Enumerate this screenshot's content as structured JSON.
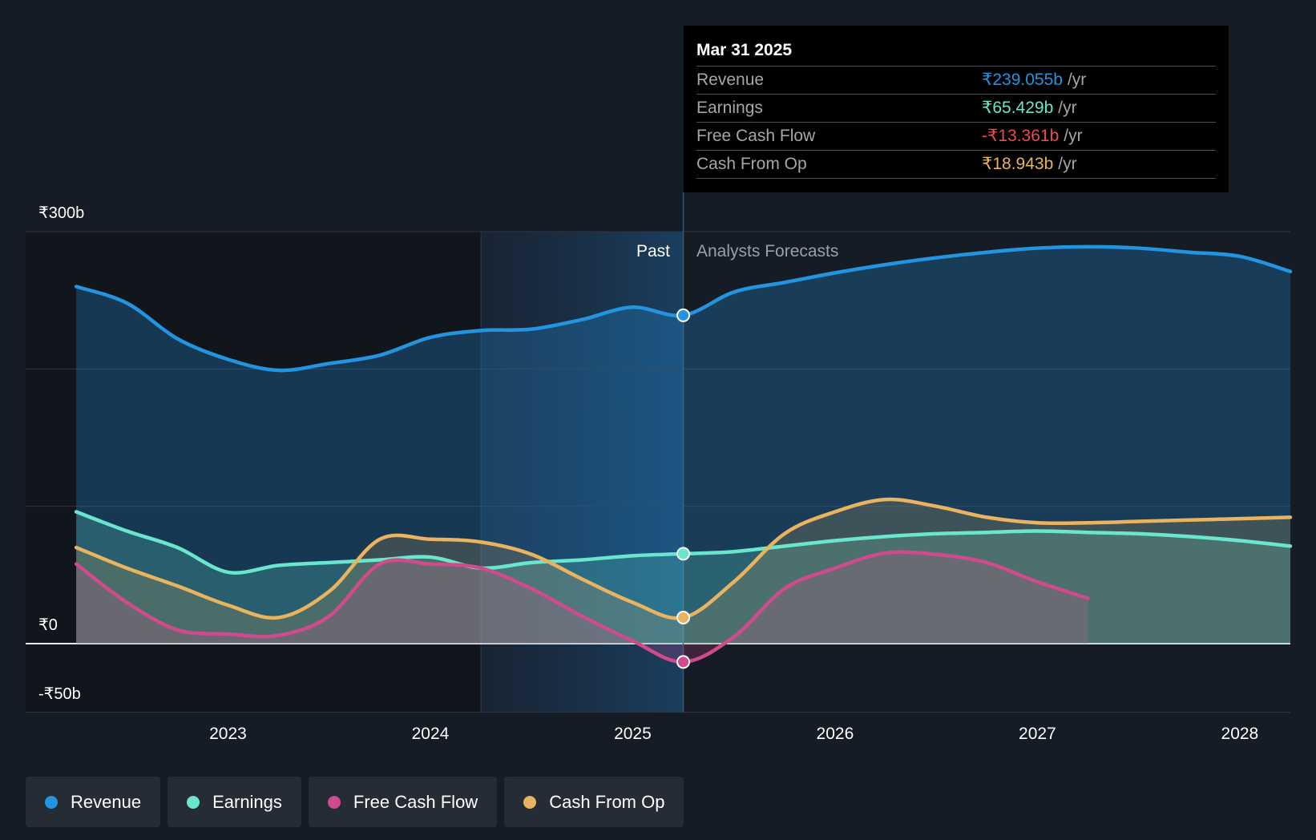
{
  "chart_data": {
    "type": "area",
    "currency_symbol": "₹",
    "y_axis": {
      "min": -50,
      "max": 300,
      "unit": "b",
      "tick_labels": [
        "₹300b",
        "₹0",
        "-₹50b"
      ],
      "gridlines": [
        300,
        200,
        100,
        0,
        -50
      ]
    },
    "x_axis": {
      "tick_labels": [
        "2023",
        "2024",
        "2025",
        "2026",
        "2027",
        "2028"
      ],
      "ticks": [
        2023,
        2024,
        2025,
        2026,
        2027,
        2028
      ],
      "range": [
        2022.0,
        2028.25
      ]
    },
    "past_label": "Past",
    "forecast_label": "Analysts Forecasts",
    "divider_x": 2025.25,
    "highlight_start_x": 2024.25,
    "series": [
      {
        "name": "Revenue",
        "color": "#2394df",
        "fill": true,
        "points": [
          [
            2022.25,
            260
          ],
          [
            2022.5,
            248
          ],
          [
            2022.75,
            222
          ],
          [
            2023.0,
            207
          ],
          [
            2023.25,
            199
          ],
          [
            2023.5,
            204
          ],
          [
            2023.75,
            210
          ],
          [
            2024.0,
            223
          ],
          [
            2024.25,
            228
          ],
          [
            2024.5,
            229
          ],
          [
            2024.75,
            236
          ],
          [
            2025.0,
            245
          ],
          [
            2025.25,
            239.055
          ],
          [
            2025.5,
            256
          ],
          [
            2025.75,
            263
          ],
          [
            2026.0,
            270
          ],
          [
            2026.25,
            276
          ],
          [
            2026.5,
            281
          ],
          [
            2026.75,
            285
          ],
          [
            2027.0,
            288
          ],
          [
            2027.25,
            289
          ],
          [
            2027.5,
            288
          ],
          [
            2027.75,
            285
          ],
          [
            2028.0,
            282
          ],
          [
            2028.25,
            271
          ]
        ]
      },
      {
        "name": "Earnings",
        "color": "#6ae6cf",
        "fill": true,
        "points": [
          [
            2022.25,
            96
          ],
          [
            2022.5,
            82
          ],
          [
            2022.75,
            70
          ],
          [
            2023.0,
            52
          ],
          [
            2023.25,
            57
          ],
          [
            2023.5,
            59
          ],
          [
            2023.75,
            61
          ],
          [
            2024.0,
            63
          ],
          [
            2024.25,
            55
          ],
          [
            2024.5,
            59
          ],
          [
            2024.75,
            61
          ],
          [
            2025.0,
            64
          ],
          [
            2025.25,
            65.429
          ],
          [
            2025.5,
            67
          ],
          [
            2025.75,
            71
          ],
          [
            2026.0,
            75
          ],
          [
            2026.25,
            78
          ],
          [
            2026.5,
            80
          ],
          [
            2026.75,
            81
          ],
          [
            2027.0,
            82
          ],
          [
            2027.25,
            81
          ],
          [
            2027.5,
            80
          ],
          [
            2027.75,
            78
          ],
          [
            2028.0,
            75
          ],
          [
            2028.25,
            71
          ]
        ]
      },
      {
        "name": "Free Cash Flow",
        "color": "#cf4b8c",
        "fill": true,
        "points": [
          [
            2022.25,
            58
          ],
          [
            2022.5,
            30
          ],
          [
            2022.75,
            10
          ],
          [
            2023.0,
            7
          ],
          [
            2023.25,
            6
          ],
          [
            2023.5,
            20
          ],
          [
            2023.75,
            58
          ],
          [
            2024.0,
            58
          ],
          [
            2024.25,
            55
          ],
          [
            2024.5,
            40
          ],
          [
            2024.75,
            20
          ],
          [
            2025.0,
            2
          ],
          [
            2025.25,
            -13.361
          ],
          [
            2025.5,
            5
          ],
          [
            2025.75,
            40
          ],
          [
            2026.0,
            55
          ],
          [
            2026.25,
            66
          ],
          [
            2026.5,
            65
          ],
          [
            2026.75,
            59
          ],
          [
            2027.0,
            45
          ],
          [
            2027.25,
            33
          ]
        ]
      },
      {
        "name": "Cash From Op",
        "color": "#e9b35f",
        "fill": true,
        "points": [
          [
            2022.25,
            70
          ],
          [
            2022.5,
            55
          ],
          [
            2022.75,
            42
          ],
          [
            2023.0,
            28
          ],
          [
            2023.25,
            19
          ],
          [
            2023.5,
            38
          ],
          [
            2023.75,
            76
          ],
          [
            2024.0,
            76
          ],
          [
            2024.25,
            74
          ],
          [
            2024.5,
            65
          ],
          [
            2024.75,
            47
          ],
          [
            2025.0,
            30
          ],
          [
            2025.25,
            18.943
          ],
          [
            2025.5,
            45
          ],
          [
            2025.75,
            80
          ],
          [
            2026.0,
            96
          ],
          [
            2026.25,
            105
          ],
          [
            2026.5,
            100
          ],
          [
            2026.75,
            92
          ],
          [
            2027.0,
            88
          ],
          [
            2027.25,
            88
          ],
          [
            2027.5,
            89
          ],
          [
            2027.75,
            90
          ],
          [
            2028.0,
            91
          ],
          [
            2028.25,
            92
          ]
        ]
      }
    ],
    "highlight_point": {
      "x": 2025.25
    }
  },
  "tooltip": {
    "date": "Mar 31 2025",
    "rows": [
      {
        "label": "Revenue",
        "value": "₹239.055b",
        "unit": "/yr",
        "color": "#2394df"
      },
      {
        "label": "Earnings",
        "value": "₹65.429b",
        "unit": "/yr",
        "color": "#6ae6cf"
      },
      {
        "label": "Free Cash Flow",
        "value": "-₹13.361b",
        "unit": "/yr",
        "color": "#ea4b4b"
      },
      {
        "label": "Cash From Op",
        "value": "₹18.943b",
        "unit": "/yr",
        "color": "#e9b35f"
      }
    ]
  },
  "legend": [
    {
      "label": "Revenue",
      "color": "#2394df"
    },
    {
      "label": "Earnings",
      "color": "#6ae6cf"
    },
    {
      "label": "Free Cash Flow",
      "color": "#cf4b8c"
    },
    {
      "label": "Cash From Op",
      "color": "#e9b35f"
    }
  ]
}
